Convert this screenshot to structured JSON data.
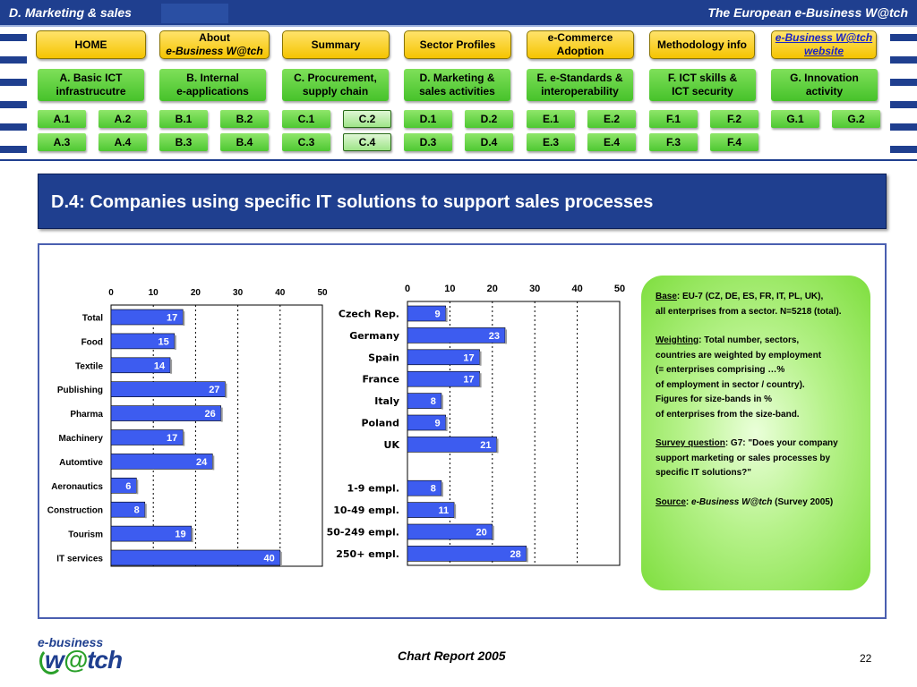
{
  "header": {
    "left_title": "D. Marketing  & sales",
    "right_title": "The European e-Business W@tch"
  },
  "nav": {
    "top_buttons": [
      {
        "line1": "HOME",
        "line2": ""
      },
      {
        "line1": "About",
        "line2": "e-Business W@tch"
      },
      {
        "line1": "Summary",
        "line2": ""
      },
      {
        "line1": "Sector Profiles",
        "line2": ""
      },
      {
        "line1": "e-Commerce",
        "line2": "Adoption"
      },
      {
        "line1": "Methodology info",
        "line2": ""
      },
      {
        "line1": "e-Business W@tch",
        "line2": "website"
      }
    ],
    "sections": [
      {
        "line1": "A. Basic ICT",
        "line2": "infrastrucutre",
        "subs": [
          "A.1",
          "A.2",
          "A.3",
          "A.4"
        ]
      },
      {
        "line1": "B. Internal",
        "line2": "e-applications",
        "subs": [
          "B.1",
          "B.2",
          "B.3",
          "B.4"
        ]
      },
      {
        "line1": "C. Procurement,",
        "line2": "supply chain",
        "subs": [
          "C.1",
          "C.2",
          "C.3",
          "C.4"
        ]
      },
      {
        "line1": "D. Marketing &",
        "line2": "sales activities",
        "subs": [
          "D.1",
          "D.2",
          "D.3",
          "D.4"
        ]
      },
      {
        "line1": "E. e-Standards &",
        "line2": "interoperability",
        "subs": [
          "E.1",
          "E.2",
          "E.3",
          "E.4"
        ]
      },
      {
        "line1": "F. ICT skills &",
        "line2": "ICT security",
        "subs": [
          "F.1",
          "F.2",
          "F.3",
          "F.4"
        ]
      },
      {
        "line1": "G. Innovation",
        "line2": "activity",
        "subs": [
          "G.1",
          "G.2"
        ]
      }
    ],
    "active_subs": [
      "C.2",
      "C.4"
    ]
  },
  "page_title": "D.4: Companies using specific IT solutions to support sales processes",
  "chart_data": [
    {
      "type": "bar",
      "orientation": "horizontal",
      "categories": [
        "Total",
        "Food",
        "Textile",
        "Publishing",
        "Pharma",
        "Machinery",
        "Automtive",
        "Aeronautics",
        "Construction",
        "Tourism",
        "IT services"
      ],
      "values": [
        17,
        15,
        14,
        27,
        26,
        17,
        24,
        6,
        8,
        19,
        40
      ],
      "xlim": [
        0,
        50
      ],
      "ticks": [
        0,
        10,
        20,
        30,
        40,
        50
      ],
      "bar_color": "#3d5cf0",
      "grid": "dotted vertical"
    },
    {
      "type": "bar",
      "orientation": "horizontal",
      "categories": [
        "Czech Rep.",
        "Germany",
        "Spain",
        "France",
        "Italy",
        "Poland",
        "UK",
        "",
        "1-9 empl.",
        "10-49 empl.",
        "50-249 empl.",
        "250+ empl."
      ],
      "values": [
        9,
        23,
        17,
        17,
        8,
        9,
        21,
        null,
        8,
        11,
        20,
        28
      ],
      "xlim": [
        0,
        50
      ],
      "ticks": [
        0,
        10,
        20,
        30,
        40,
        50
      ],
      "bar_color": "#3d5cf0",
      "grid": "dotted vertical"
    }
  ],
  "notes": {
    "base_label": "Base",
    "base_text": ": EU-7 (CZ, DE, ES, FR, IT, PL, UK),",
    "base_text2": "all enterprises from a sector. N=5218 (total).",
    "weighting_label": "Weighting",
    "weighting_text": ": Total number, sectors,",
    "weighting_lines": [
      "countries are weighted by employment",
      "(= enterprises comprising …%",
      "of employment in sector / country).",
      "Figures for size-bands in %",
      "of enterprises from the size-band."
    ],
    "survey_label": "Survey question",
    "survey_text": ": G7: \"Does your company",
    "survey_lines": [
      "support marketing or sales processes by",
      "specific IT solutions?\""
    ],
    "source_label": "Source",
    "source_colon": ": ",
    "source_name": "e-Business W@tch",
    "source_text": " (Survey 2005)"
  },
  "footer": {
    "logo_top": "e-business",
    "logo_main_prefix": "w",
    "logo_main_at": "@",
    "logo_main_suffix": "tch",
    "report_title": "Chart Report 2005",
    "page_number": "22"
  }
}
